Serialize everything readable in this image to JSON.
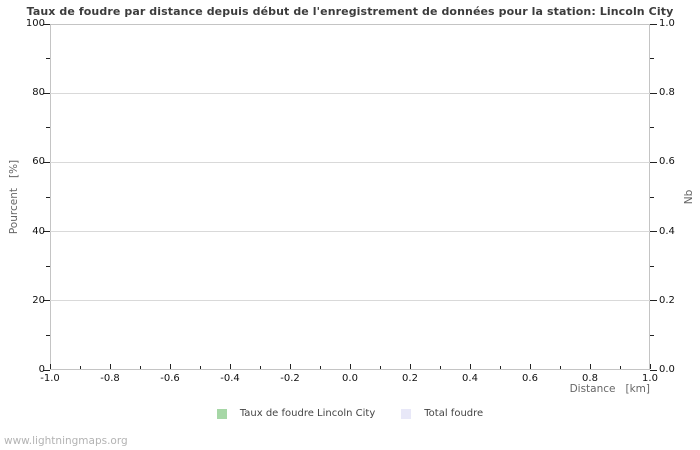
{
  "page": {
    "watermark": "www.lightningmaps.org",
    "background_color": "#ffffff"
  },
  "colors": {
    "title_text": "#3c3c3c",
    "tick_label_text": "#111111",
    "axis_label_text": "#666666",
    "legend_text": "#444444",
    "plot_border": "#c4c4c4",
    "gridline": "#d9d9d9",
    "tick_mark": "#222222",
    "watermark_text": "#b3b3b3",
    "series_green": "#a6d7a6",
    "series_lavender": "#e8e8f8"
  },
  "chart_data": {
    "type": "line",
    "title": "Taux de foudre par distance depuis début de l'enregistrement de données pour la station: Lincoln City",
    "xlabel": "Distance   [km]",
    "ylabel": "Pourcent   [%]",
    "ylabel_right": "Nb",
    "xlim": [
      -1.0,
      1.0
    ],
    "ylim": [
      0,
      100
    ],
    "ylim_right": [
      0.0,
      1.0
    ],
    "x_tick_labels": [
      "-1.0",
      "-0.8",
      "-0.6",
      "-0.4",
      "-0.2",
      "0.0",
      "0.2",
      "0.4",
      "0.6",
      "0.8",
      "1.0"
    ],
    "y_tick_labels_left": [
      "0",
      "20",
      "40",
      "60",
      "80",
      "100"
    ],
    "y_tick_labels_right": [
      "0.0",
      "0.2",
      "0.4",
      "0.6",
      "0.8",
      "1.0"
    ],
    "grid": "horizontal-major-only",
    "legend_position": "bottom-center",
    "series": [
      {
        "name": "Taux de foudre Lincoln City",
        "color": "#a6d7a6",
        "axis": "left",
        "x": [],
        "y": []
      },
      {
        "name": "Total foudre",
        "color": "#e8e8f8",
        "axis": "right",
        "x": [],
        "y": []
      }
    ]
  }
}
